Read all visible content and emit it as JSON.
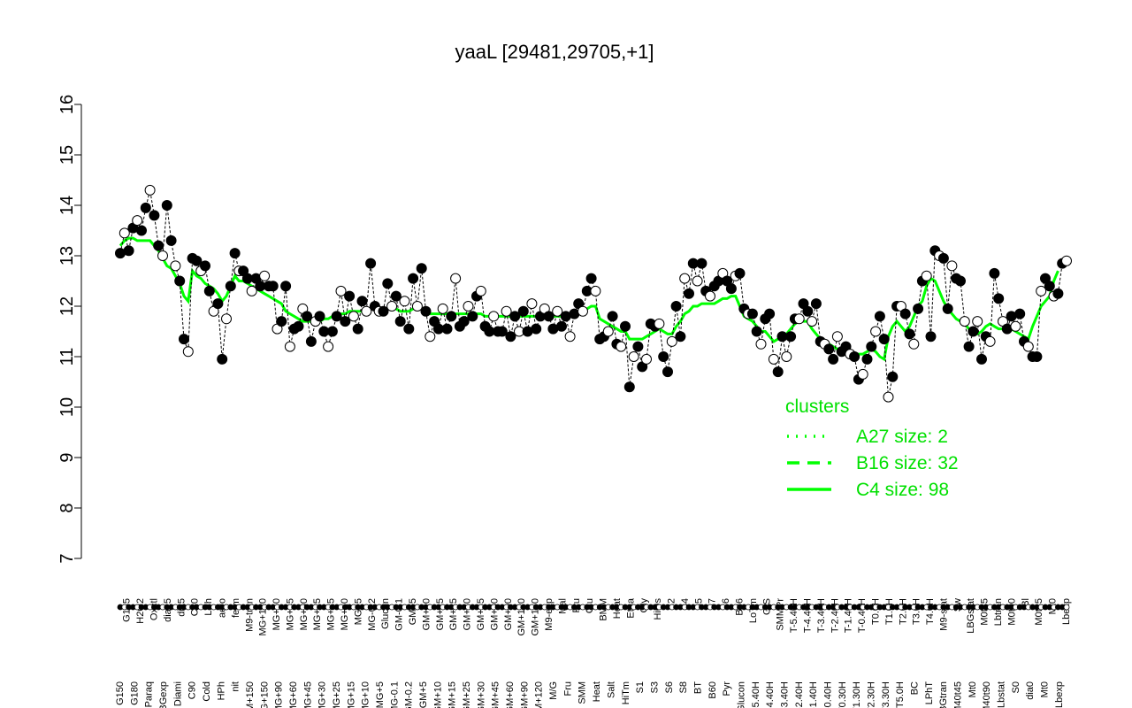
{
  "chart_data": {
    "type": "line",
    "title": "yaaL [29481,29705,+1]",
    "xlabel": "",
    "ylabel": "",
    "ylim": [
      7,
      16
    ],
    "yticks": [
      7,
      8,
      9,
      10,
      11,
      12,
      13,
      14,
      15,
      16
    ],
    "colors": {
      "points_fill_black": "#000000",
      "points_fill_white": "#ffffff",
      "cluster_line": "#00ff00",
      "legend_text": "#00e000"
    },
    "legend": {
      "title": "clusters",
      "position": "bottom-right",
      "entries": [
        {
          "label": "A27 size: 2",
          "style": "dotted"
        },
        {
          "label": "B16 size: 32",
          "style": "dashed"
        },
        {
          "label": "C4 size: 98",
          "style": "solid"
        }
      ]
    },
    "x_labels_top": [
      "G135",
      "H2O2",
      "Oxctl",
      "dia15",
      "dia5",
      "C30",
      "LPh",
      "aero",
      "ferm",
      "M9-tran",
      "MG+120",
      "MG+60",
      "MG+45",
      "MG+30",
      "MG+25",
      "MG+15",
      "MG+10",
      "MG+5",
      "MG-0.2",
      "Glucon",
      "GM-0.1",
      "GM+5",
      "GM+10",
      "GM+15",
      "GM+25",
      "GM+30",
      "GM+45",
      "GM+60",
      "GM+90",
      "GM+120",
      "GM+150",
      "M9-exp",
      "Mal",
      "Fru",
      "Glu",
      "BMM",
      "Heat",
      "Etha",
      "Gly",
      "HiOs",
      "S2",
      "S4",
      "S5",
      "S7",
      "S6",
      "B36",
      "LoTm",
      "G/S",
      "SMMPr",
      "T-5.40H",
      "T-4.40H",
      "T-3.40H",
      "T-2.40H",
      "T-1.40H",
      "T-0.40H",
      "T0.0H",
      "T1.0H",
      "T2.0H",
      "T3.0H",
      "T4.0H",
      "M9-stat",
      "Sw",
      "LBGstat",
      "M0t45",
      "Lbtran",
      "M0t90",
      "Bl",
      "M0t45",
      "Mt0",
      "Lbexp"
    ],
    "x_labels_bottom": [
      "G150",
      "G180",
      "Paraq",
      "LBGexp",
      "Diami",
      "C90",
      "Cold",
      "HPh",
      "nit",
      "GM+150",
      "MG+150",
      "MG+90",
      "MG+60",
      "MG+45",
      "MG+30",
      "MG+25",
      "MG+15",
      "MG+10",
      "MG+5",
      "MG-0.1",
      "GM-0.2",
      "GM+5",
      "GM+10",
      "GM+15",
      "GM+25",
      "GM+30",
      "GM+45",
      "GM+60",
      "GM+90",
      "GM+120",
      "M/G",
      "Fru",
      "SMM",
      "Heat",
      "Salt",
      "HiTm",
      "S1",
      "S3",
      "S6",
      "S8",
      "BT",
      "B60",
      "Pyr",
      "Glucon",
      "T-5.40H",
      "T-4.40H",
      "T-3.40H",
      "T-2.40H",
      "T-1.40H",
      "T-0.40H",
      "T0.30H",
      "T1.30H",
      "T2.30H",
      "T3.30H",
      "T5.0H",
      "BC",
      "LPhT",
      "LBGtran",
      "M40t45",
      "Mt0",
      "M40t90",
      "Lbstat",
      "S0",
      "dia0",
      "Mt0",
      "Lbexp"
    ],
    "series": [
      {
        "name": "expression (black points = cluster C4 members, white points = other)",
        "values": [
          13.05,
          13.45,
          13.1,
          13.55,
          13.7,
          13.5,
          13.95,
          14.3,
          13.8,
          13.2,
          13.0,
          14.0,
          13.3,
          12.8,
          12.5,
          11.35,
          11.1,
          12.95,
          12.9,
          12.7,
          12.8,
          12.3,
          11.9,
          12.05,
          10.95,
          11.75,
          12.4,
          13.05,
          12.7,
          12.7,
          12.55,
          12.3,
          12.55,
          12.4,
          12.6,
          12.4,
          12.4,
          11.55,
          11.7,
          12.4,
          11.2,
          11.55,
          11.6,
          11.95,
          11.8,
          11.3,
          11.7,
          11.8,
          11.5,
          11.2,
          11.5,
          11.8,
          12.3,
          11.7,
          12.2,
          11.8,
          11.55,
          12.1,
          11.9,
          12.85,
          12.0,
          11.9,
          11.9,
          12.45,
          12.0,
          12.2,
          11.7,
          12.1,
          11.55,
          12.55,
          12.0,
          12.75,
          11.9,
          11.4,
          11.7,
          11.55,
          11.95,
          11.55,
          11.8,
          12.55,
          11.6,
          11.7,
          12.0,
          11.8,
          12.2,
          12.3,
          11.6,
          11.5,
          11.8,
          11.5,
          11.5,
          11.9,
          11.4,
          11.8,
          11.5,
          11.9,
          11.5,
          12.05,
          11.55,
          11.8,
          11.95,
          11.8,
          11.55,
          11.9,
          11.6,
          11.8,
          11.4,
          11.85,
          12.05,
          11.9,
          12.3,
          12.55,
          12.3,
          11.35,
          11.4,
          11.5,
          11.8,
          11.25,
          11.2,
          11.6,
          10.4,
          11.0,
          11.2,
          10.8,
          10.95,
          11.65,
          11.6,
          11.65,
          11.0,
          10.7,
          11.3,
          12.0,
          11.4,
          12.55,
          12.25,
          12.85,
          12.5,
          12.85,
          12.3,
          12.2,
          12.4,
          12.5,
          12.65,
          12.5,
          12.35,
          12.6,
          12.65,
          11.95,
          11.85,
          11.85,
          11.5,
          11.25,
          11.75,
          11.85,
          10.95,
          10.7,
          11.4,
          11.0,
          11.4,
          11.75,
          11.75,
          12.05,
          11.9,
          11.7,
          12.05,
          11.3,
          11.25,
          11.15,
          10.95,
          11.4,
          11.1,
          11.2,
          11.05,
          11.0,
          10.55,
          10.65,
          10.95,
          11.2,
          11.5,
          11.8,
          11.35,
          10.2,
          10.6,
          12.0,
          12.0,
          11.85,
          11.45,
          11.25,
          11.95,
          12.5,
          12.6,
          11.4,
          13.1,
          13.0,
          12.95,
          11.95,
          12.8,
          12.55,
          12.5,
          11.7,
          11.2,
          11.5,
          11.7,
          10.95,
          11.4,
          11.3,
          12.65,
          12.15,
          11.7,
          11.55,
          11.8,
          11.6,
          11.85,
          11.3,
          11.2,
          11.0,
          11.0,
          12.3,
          12.55,
          12.4,
          12.2,
          12.25,
          12.85,
          12.9
        ]
      },
      {
        "name": "C4 cluster mean",
        "values": [
          13.2,
          13.3,
          13.35,
          13.35,
          13.3,
          13.3,
          13.3,
          13.3,
          13.2,
          13.1,
          12.95,
          12.8,
          12.75,
          12.6,
          12.45,
          12.2,
          12.1,
          12.7,
          12.6,
          12.55,
          12.45,
          12.4,
          12.35,
          12.25,
          12.1,
          12.2,
          12.4,
          12.6,
          12.5,
          12.5,
          12.45,
          12.4,
          12.35,
          12.3,
          12.25,
          12.2,
          12.15,
          12.1,
          12.05,
          11.9,
          11.85,
          11.8,
          11.75,
          11.7,
          11.7,
          11.7,
          11.7,
          11.7,
          11.75,
          11.75,
          11.8,
          11.8,
          11.85,
          11.85,
          11.9,
          11.9,
          11.9,
          11.9,
          11.9,
          11.95,
          11.95,
          11.95,
          11.95,
          11.95,
          11.95,
          11.95,
          11.9,
          11.9,
          11.9,
          11.95,
          11.95,
          11.95,
          11.9,
          11.85,
          11.85,
          11.85,
          11.85,
          11.85,
          11.85,
          11.85,
          11.85,
          11.85,
          11.85,
          11.85,
          11.85,
          11.85,
          11.8,
          11.8,
          11.8,
          11.8,
          11.8,
          11.8,
          11.8,
          11.8,
          11.8,
          11.8,
          11.8,
          11.8,
          11.8,
          11.8,
          11.8,
          11.8,
          11.8,
          11.8,
          11.8,
          11.8,
          11.8,
          11.85,
          11.9,
          11.9,
          11.95,
          12.0,
          12.0,
          11.75,
          11.7,
          11.65,
          11.6,
          11.55,
          11.5,
          11.5,
          11.35,
          11.35,
          11.35,
          11.35,
          11.4,
          11.45,
          11.5,
          11.55,
          11.5,
          11.45,
          11.45,
          11.6,
          11.7,
          11.85,
          11.9,
          12.0,
          12.0,
          12.05,
          12.05,
          12.05,
          12.05,
          12.1,
          12.15,
          12.15,
          12.2,
          12.2,
          12.0,
          11.8,
          11.75,
          11.7,
          11.6,
          11.5,
          11.5,
          11.4,
          11.3,
          11.35,
          11.4,
          11.45,
          11.55,
          11.65,
          11.7,
          11.7,
          11.7,
          11.55,
          11.45,
          11.35,
          11.3,
          11.25,
          11.2,
          11.15,
          11.1,
          11.1,
          11.05,
          11.05,
          11.05,
          11.05,
          11.1,
          11.15,
          11.1,
          11.0,
          10.95,
          11.4,
          11.6,
          11.7,
          11.6,
          11.5,
          11.6,
          11.8,
          12.0,
          12.1,
          12.4,
          12.55,
          12.5,
          12.3,
          12.1,
          11.95,
          11.85,
          11.75,
          11.7,
          11.65,
          11.55,
          11.5,
          11.45,
          11.5,
          11.6,
          11.65,
          11.6,
          11.55,
          11.55,
          11.55,
          11.55,
          11.5,
          11.45,
          11.4,
          11.35,
          11.6,
          11.8,
          12.0,
          12.1,
          12.2,
          12.5,
          12.7
        ]
      }
    ]
  }
}
